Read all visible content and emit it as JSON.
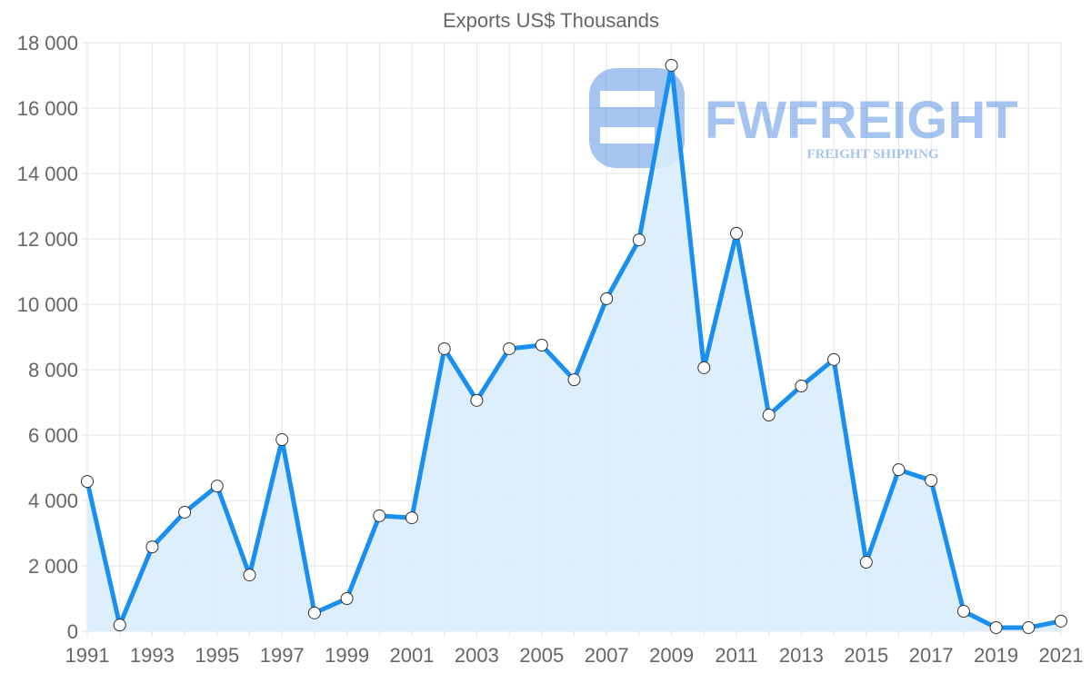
{
  "chart_data": {
    "type": "line",
    "title": "Exports US$ Thousands",
    "xlabel": "",
    "ylabel": "",
    "x": [
      1991,
      1992,
      1993,
      1994,
      1995,
      1996,
      1997,
      1998,
      1999,
      2000,
      2001,
      2002,
      2003,
      2004,
      2005,
      2006,
      2007,
      2008,
      2009,
      2010,
      2011,
      2012,
      2013,
      2014,
      2015,
      2016,
      2017,
      2018,
      2019,
      2020,
      2021
    ],
    "series": [
      {
        "name": "Exports US$ Thousands",
        "values": [
          4580,
          190,
          2580,
          3640,
          4440,
          1720,
          5860,
          560,
          1000,
          3530,
          3470,
          8640,
          7060,
          8640,
          8750,
          7690,
          10170,
          11970,
          17310,
          8060,
          12170,
          6610,
          7500,
          8310,
          2110,
          4940,
          4610,
          610,
          110,
          110,
          310
        ]
      }
    ],
    "ylim": [
      0,
      18000
    ],
    "yticks": [
      "0",
      "2 000",
      "4 000",
      "6 000",
      "8 000",
      "10 000",
      "12 000",
      "14 000",
      "16 000",
      "18 000"
    ],
    "xticks": [
      "1991",
      "1993",
      "1995",
      "1997",
      "1999",
      "2001",
      "2003",
      "2005",
      "2007",
      "2009",
      "2011",
      "2013",
      "2015",
      "2017",
      "2019",
      "2021"
    ],
    "grid": true,
    "filled": true,
    "colors": {
      "line": "#1a8ff0",
      "fill": "#d9ecfc",
      "grid": "#e5e5e5",
      "logo": "#3b7de0"
    }
  },
  "watermark": {
    "brand": "FWFREIGHT",
    "tagline": "FREIGHT SHIPPING"
  }
}
